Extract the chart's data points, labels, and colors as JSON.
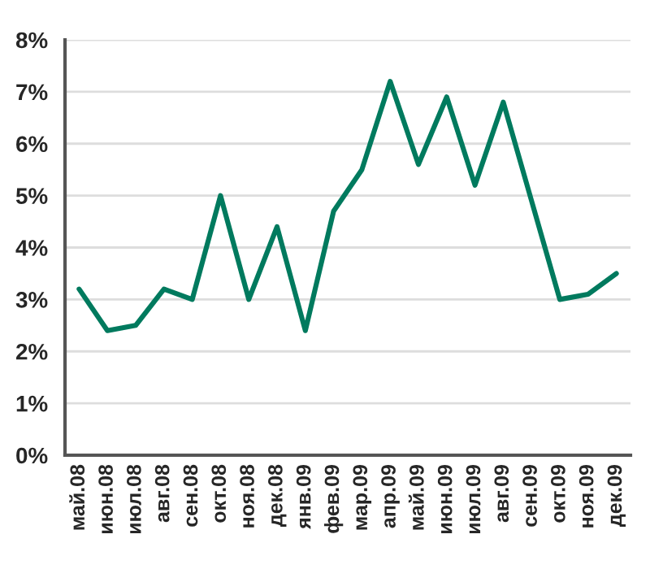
{
  "chart_data": {
    "type": "line",
    "categories": [
      "май.08",
      "июн.08",
      "июл.08",
      "авг.08",
      "сен.08",
      "окт.08",
      "ноя.08",
      "дек.08",
      "янв.09",
      "фев.09",
      "мар.09",
      "апр.09",
      "май.09",
      "июн.09",
      "июл.09",
      "авг.09",
      "сен.09",
      "окт.09",
      "ноя.09",
      "дек.09"
    ],
    "series": [
      {
        "color": "#007a5e",
        "values": [
          3.2,
          2.4,
          2.5,
          3.2,
          3.0,
          5.0,
          3.0,
          4.4,
          2.4,
          4.7,
          5.5,
          7.2,
          5.6,
          6.9,
          5.2,
          6.8,
          4.9,
          3.0,
          3.1,
          3.5
        ]
      }
    ],
    "ylim": [
      0,
      8
    ],
    "yticks": [
      {
        "value": 0,
        "label": "0%"
      },
      {
        "value": 1,
        "label": "1%"
      },
      {
        "value": 2,
        "label": "2%"
      },
      {
        "value": 3,
        "label": "3%"
      },
      {
        "value": 4,
        "label": "4%"
      },
      {
        "value": 5,
        "label": "5%"
      },
      {
        "value": 6,
        "label": "6%"
      },
      {
        "value": 7,
        "label": "7%"
      },
      {
        "value": 8,
        "label": "8%"
      }
    ],
    "grid": "y",
    "marker": "none",
    "line_style": "solid"
  }
}
